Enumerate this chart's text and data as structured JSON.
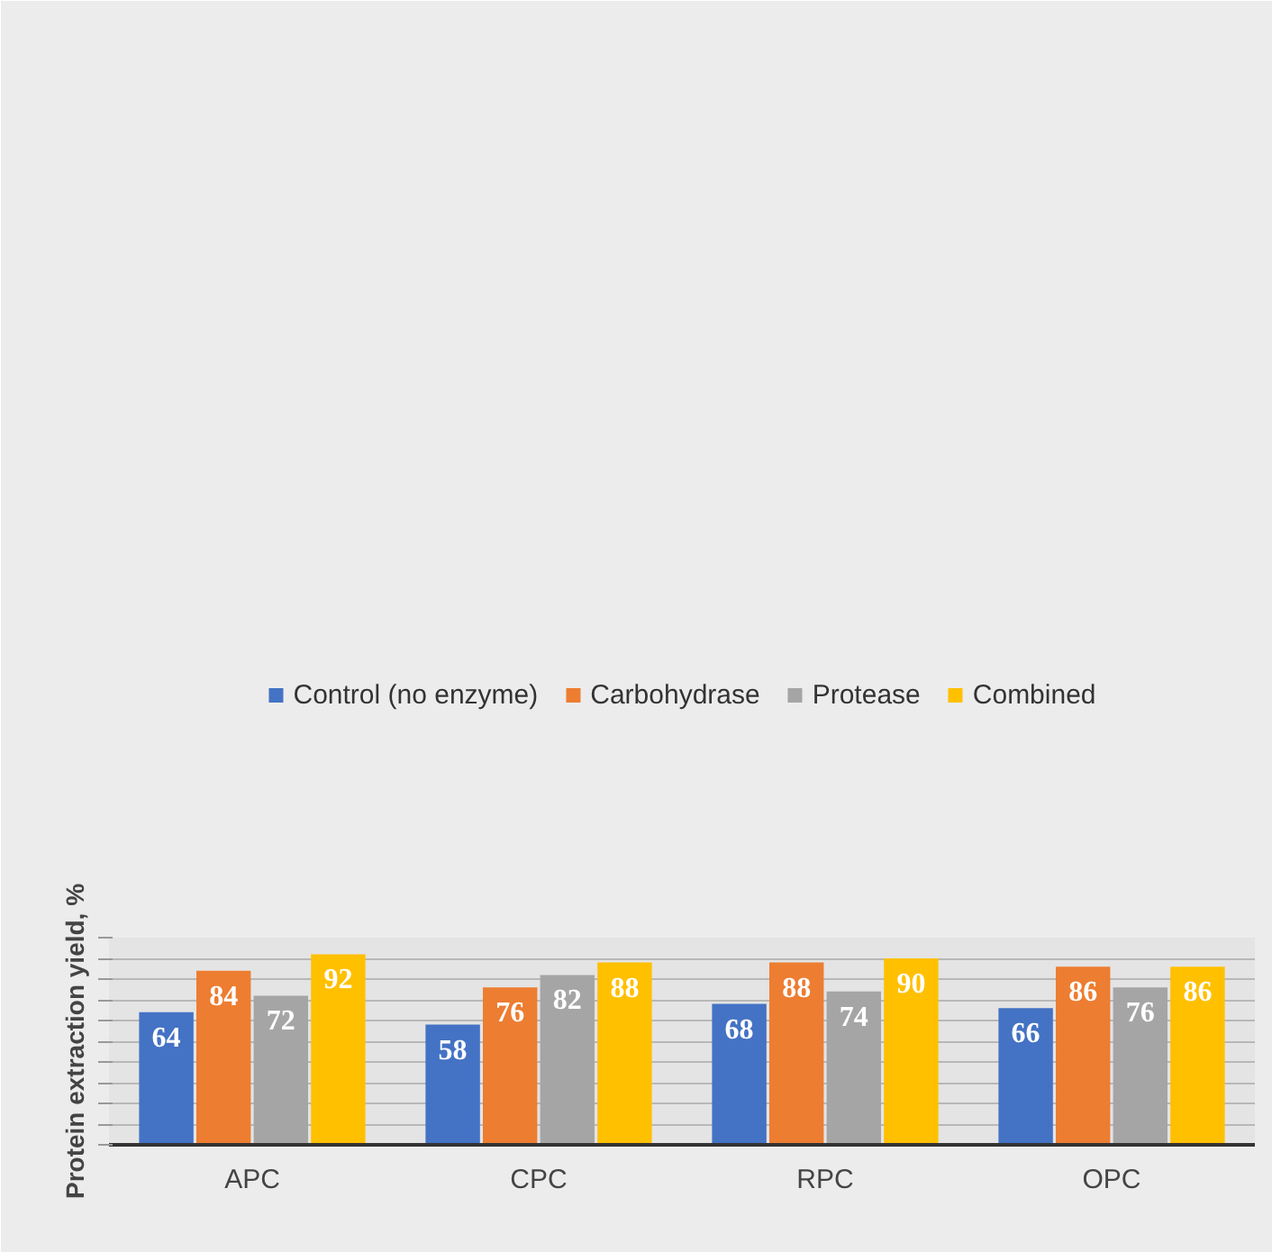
{
  "chart_data": {
    "type": "bar",
    "ylabel": "Protein extraction yield, %",
    "categories": [
      "APC",
      "CPC",
      "RPC",
      "OPC"
    ],
    "series": [
      {
        "name": "Control (no enzyme)",
        "color": "#4472c4",
        "values": [
          64,
          58,
          68,
          66
        ]
      },
      {
        "name": "Carbohydrase",
        "color": "#ed7d31",
        "values": [
          84,
          76,
          88,
          86
        ]
      },
      {
        "name": "Protease",
        "color": "#a5a5a5",
        "values": [
          72,
          82,
          74,
          76
        ]
      },
      {
        "name": "Combined",
        "color": "#ffc000",
        "values": [
          92,
          88,
          90,
          86
        ]
      }
    ],
    "ylim": [
      0,
      100
    ],
    "yticks": [
      {
        "value": 0,
        "label": null
      },
      {
        "value": 10,
        "label": null
      },
      {
        "value": 20,
        "label": null
      },
      {
        "value": 30,
        "label": null
      },
      {
        "value": 40,
        "label": null
      },
      {
        "value": 50,
        "label": null
      },
      {
        "value": 60,
        "label": null
      },
      {
        "value": 70,
        "label": null
      },
      {
        "value": 80,
        "label": null
      },
      {
        "value": 90,
        "label": null
      },
      {
        "value": 100,
        "label": null
      }
    ],
    "tick_labels": "x",
    "grid": "y",
    "legend": "top",
    "data_labels": true
  }
}
